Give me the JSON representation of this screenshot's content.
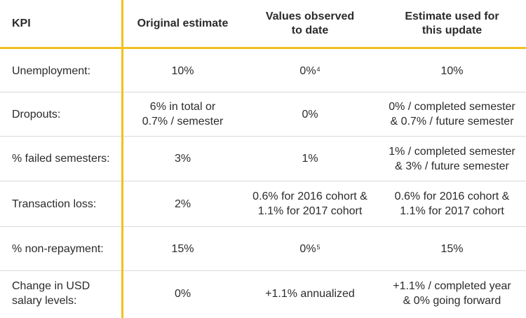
{
  "header": {
    "kpi": "KPI",
    "original": "Original estimate",
    "observed": "Values observed\nto date",
    "update": "Estimate used for\nthis update"
  },
  "rows": [
    {
      "kpi": "Unemployment:",
      "original": "10%",
      "observed": "0%",
      "observed_note": "4",
      "update": "10%"
    },
    {
      "kpi": "Dropouts:",
      "original": "6% in total or\n0.7% / semester",
      "observed": "0%",
      "observed_note": "",
      "update": "0% / completed semester\n& 0.7% / future semester"
    },
    {
      "kpi": "% failed semesters:",
      "original": "3%",
      "observed": "1%",
      "observed_note": "",
      "update": "1% / completed semester\n& 3% / future semester"
    },
    {
      "kpi": "Transaction loss:",
      "original": "2%",
      "observed": "0.6% for 2016 cohort &\n1.1% for 2017 cohort",
      "observed_note": "",
      "update": "0.6% for 2016 cohort &\n1.1% for 2017 cohort"
    },
    {
      "kpi": "% non-repayment:",
      "original": "15%",
      "observed": "0%",
      "observed_note": "5",
      "update": "15%"
    },
    {
      "kpi": "Change in USD\nsalary levels:",
      "original": "0%",
      "observed": "+1.1% annualized",
      "observed_note": "",
      "update": "+1.1% / completed year\n& 0%  going forward"
    }
  ],
  "colors": {
    "accent": "#f2c01e",
    "separator": "#d9d9d9",
    "text": "#2b2b2b"
  }
}
